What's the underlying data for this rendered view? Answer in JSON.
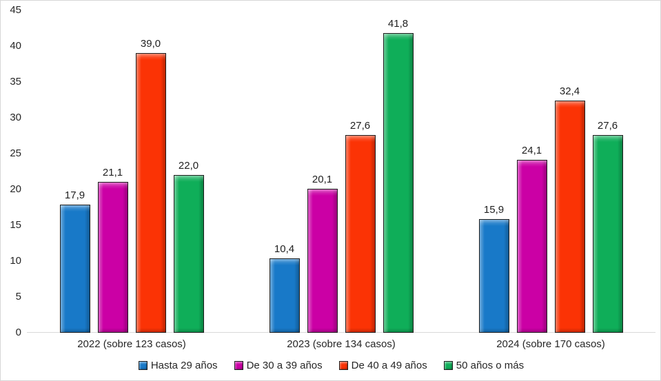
{
  "chart_data": {
    "type": "bar",
    "title": "",
    "categories": [
      "2022 (sobre 123 casos)",
      "2023 (sobre 134 casos)",
      "2024 (sobre 170 casos)"
    ],
    "series": [
      {
        "name": "Hasta 29 años",
        "color": "#1879C8",
        "values": [
          17.9,
          10.4,
          15.9
        ],
        "labels": [
          "17,9",
          "10,4",
          "15,9"
        ]
      },
      {
        "name": "De 30 a 39 años",
        "color": "#CB00A5",
        "values": [
          21.1,
          20.1,
          24.1
        ],
        "labels": [
          "21,1",
          "20,1",
          "24,1"
        ]
      },
      {
        "name": "De 40 a 49 años",
        "color": "#FB3305",
        "values": [
          39.0,
          27.6,
          32.4
        ],
        "labels": [
          "39,0",
          "27,6",
          "32,4"
        ]
      },
      {
        "name": "50 años o más",
        "color": "#0FAE59",
        "values": [
          22.0,
          41.8,
          27.6
        ],
        "labels": [
          "22,0",
          "41,8",
          "27,6"
        ]
      }
    ],
    "y_axis": {
      "min": 0,
      "max": 45,
      "step": 5,
      "ticks": [
        "0",
        "5",
        "10",
        "15",
        "20",
        "25",
        "30",
        "35",
        "40",
        "45"
      ]
    },
    "grid": false,
    "legend_position": "bottom",
    "decimal_separator": ","
  },
  "frame": {
    "background": "#ffffff",
    "border_color": "#d7d7d7",
    "axis_line_color": "#d9d9d9"
  }
}
